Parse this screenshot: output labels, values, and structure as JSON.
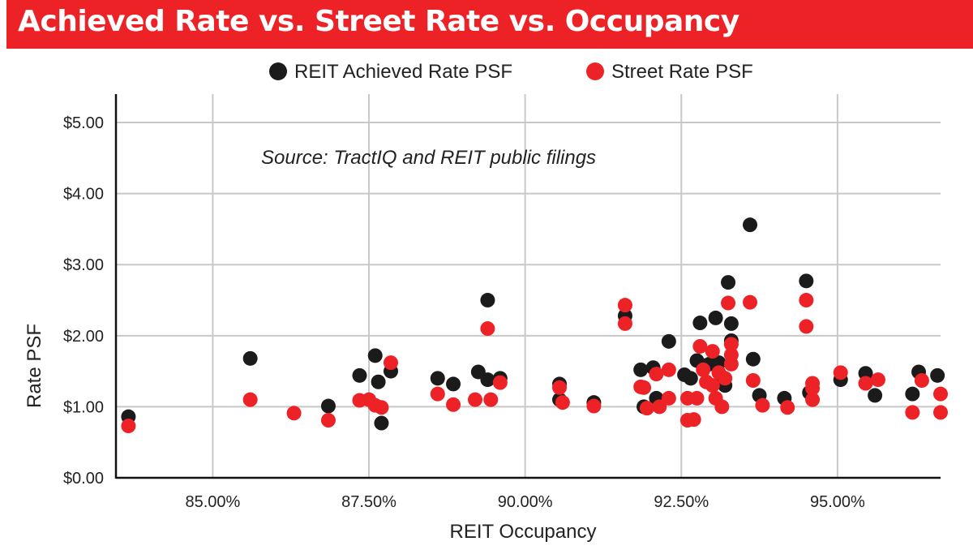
{
  "title": "Achieved Rate vs. Street Rate vs. Occupancy",
  "colors": {
    "banner": "#ec2227",
    "achieved": "#1b1b1b",
    "street": "#ec2227"
  },
  "chart_data": {
    "type": "scatter",
    "title": "Achieved Rate vs. Street Rate vs. Occupancy",
    "xlabel": "REIT Occupancy",
    "ylabel": "Rate PSF",
    "annotation": "Source: TractIQ and REIT public filings",
    "xlim": [
      83.45,
      96.65
    ],
    "ylim": [
      0,
      5.4
    ],
    "x_ticks": [
      85,
      87.5,
      90,
      92.5,
      95
    ],
    "x_tick_labels": [
      "85.00%",
      "87.50%",
      "90.00%",
      "92.50%",
      "95.00%"
    ],
    "y_ticks": [
      0,
      1,
      2,
      3,
      4,
      5
    ],
    "y_tick_labels": [
      "$0.00",
      "$1.00",
      "$2.00",
      "$3.00",
      "$4.00",
      "$5.00"
    ],
    "grid": true,
    "legend_position": "top-center",
    "series": [
      {
        "name": "REIT Achieved Rate PSF",
        "color": "#1b1b1b",
        "points": [
          [
            83.65,
            0.86
          ],
          [
            85.6,
            1.68
          ],
          [
            86.85,
            1.01
          ],
          [
            87.35,
            1.44
          ],
          [
            87.6,
            1.72
          ],
          [
            87.65,
            1.35
          ],
          [
            87.7,
            0.77
          ],
          [
            87.85,
            1.5
          ],
          [
            88.6,
            1.4
          ],
          [
            88.85,
            1.32
          ],
          [
            89.25,
            1.49
          ],
          [
            89.4,
            2.5
          ],
          [
            89.4,
            1.38
          ],
          [
            89.6,
            1.4
          ],
          [
            90.55,
            1.32
          ],
          [
            90.55,
            1.1
          ],
          [
            91.1,
            1.06
          ],
          [
            91.6,
            2.28
          ],
          [
            91.85,
            1.52
          ],
          [
            91.9,
            1.0
          ],
          [
            92.05,
            1.55
          ],
          [
            92.1,
            1.12
          ],
          [
            92.3,
            1.92
          ],
          [
            92.55,
            1.45
          ],
          [
            92.65,
            1.4
          ],
          [
            92.75,
            1.65
          ],
          [
            92.8,
            2.18
          ],
          [
            92.85,
            1.58
          ],
          [
            92.95,
            1.6
          ],
          [
            93.05,
            2.25
          ],
          [
            93.1,
            1.62
          ],
          [
            93.15,
            1.42
          ],
          [
            93.2,
            1.3
          ],
          [
            93.25,
            2.75
          ],
          [
            93.3,
            2.17
          ],
          [
            93.3,
            1.93
          ],
          [
            93.6,
            3.56
          ],
          [
            93.65,
            1.67
          ],
          [
            93.75,
            1.16
          ],
          [
            94.15,
            1.12
          ],
          [
            94.5,
            2.77
          ],
          [
            94.55,
            1.2
          ],
          [
            95.05,
            1.38
          ],
          [
            95.45,
            1.47
          ],
          [
            95.6,
            1.16
          ],
          [
            96.2,
            1.18
          ],
          [
            96.3,
            1.49
          ],
          [
            96.6,
            1.44
          ]
        ]
      },
      {
        "name": "Street Rate PSF",
        "color": "#ec2227",
        "points": [
          [
            83.65,
            0.73
          ],
          [
            85.6,
            1.1
          ],
          [
            86.3,
            0.91
          ],
          [
            86.85,
            0.81
          ],
          [
            87.35,
            1.09
          ],
          [
            87.5,
            1.1
          ],
          [
            87.6,
            1.02
          ],
          [
            87.7,
            0.99
          ],
          [
            87.85,
            1.62
          ],
          [
            88.6,
            1.18
          ],
          [
            88.85,
            1.03
          ],
          [
            89.2,
            1.1
          ],
          [
            89.4,
            2.1
          ],
          [
            89.45,
            1.1
          ],
          [
            89.6,
            1.34
          ],
          [
            90.55,
            1.27
          ],
          [
            90.6,
            1.06
          ],
          [
            91.1,
            1.01
          ],
          [
            91.6,
            2.43
          ],
          [
            91.6,
            2.17
          ],
          [
            91.85,
            1.28
          ],
          [
            91.9,
            1.27
          ],
          [
            91.95,
            0.98
          ],
          [
            92.1,
            1.46
          ],
          [
            92.15,
            1.0
          ],
          [
            92.3,
            1.52
          ],
          [
            92.3,
            1.12
          ],
          [
            92.6,
            0.81
          ],
          [
            92.6,
            1.12
          ],
          [
            92.7,
            0.82
          ],
          [
            92.75,
            1.12
          ],
          [
            92.8,
            1.85
          ],
          [
            92.85,
            1.52
          ],
          [
            92.9,
            1.35
          ],
          [
            93.0,
            1.78
          ],
          [
            93.0,
            1.3
          ],
          [
            93.05,
            1.12
          ],
          [
            93.1,
            1.48
          ],
          [
            93.15,
            1.0
          ],
          [
            93.2,
            1.4
          ],
          [
            93.25,
            2.46
          ],
          [
            93.3,
            1.88
          ],
          [
            93.3,
            1.73
          ],
          [
            93.3,
            1.6
          ],
          [
            93.6,
            2.47
          ],
          [
            93.65,
            1.37
          ],
          [
            93.8,
            1.02
          ],
          [
            94.2,
            0.99
          ],
          [
            94.5,
            2.5
          ],
          [
            94.5,
            2.13
          ],
          [
            94.6,
            1.33
          ],
          [
            94.6,
            1.26
          ],
          [
            94.6,
            1.1
          ],
          [
            95.05,
            1.48
          ],
          [
            95.45,
            1.33
          ],
          [
            95.65,
            1.38
          ],
          [
            96.2,
            0.92
          ],
          [
            96.35,
            1.37
          ],
          [
            96.65,
            1.18
          ],
          [
            96.65,
            0.92
          ]
        ]
      }
    ]
  }
}
